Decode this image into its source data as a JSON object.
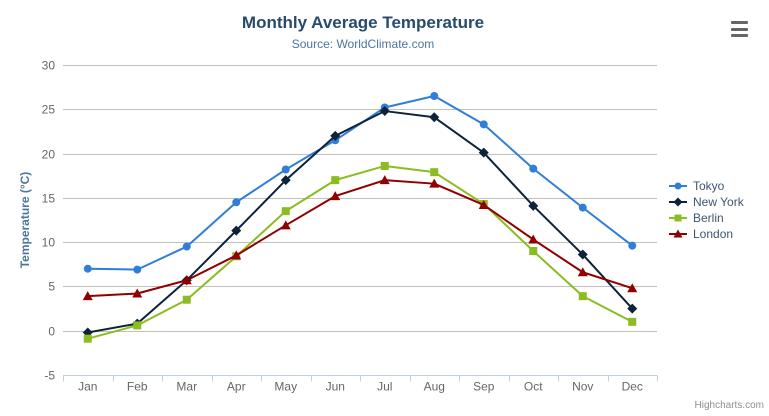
{
  "header": {
    "title": "Monthly Average Temperature",
    "subtitle": "Source: WorldClimate.com"
  },
  "toolbar": {
    "export_menu_icon": "hamburger-menu-icon"
  },
  "credits": {
    "label": "Highcharts.com"
  },
  "colors": {
    "grid_line": "#C0C0C0",
    "axis_line": "#C0D0E0",
    "tick": "#C0D0E0",
    "axis_label": "#666666",
    "title": "#274b6d",
    "subtitle": "#4d759e",
    "yaxis_title": "#4d759e",
    "legend_text": "#3E576F",
    "credits_text": "#909090"
  },
  "chart_data": {
    "type": "line",
    "title": "Monthly Average Temperature",
    "subtitle": "Source: WorldClimate.com",
    "categories": [
      "Jan",
      "Feb",
      "Mar",
      "Apr",
      "May",
      "Jun",
      "Jul",
      "Aug",
      "Sep",
      "Oct",
      "Nov",
      "Dec"
    ],
    "xlabel": "",
    "ylabel": "Temperature (°C)",
    "yaxis": {
      "title": "Temperature (°C)",
      "min": -5,
      "max": 30,
      "tick_interval": 5,
      "ticks": [
        -5,
        0,
        5,
        10,
        15,
        20,
        25,
        30
      ]
    },
    "grid": true,
    "legend_position": "right",
    "series": [
      {
        "name": "Tokyo",
        "color": "#2f7ed8",
        "marker": "circle",
        "values": [
          7.0,
          6.9,
          9.5,
          14.5,
          18.2,
          21.5,
          25.2,
          26.5,
          23.3,
          18.3,
          13.9,
          9.6
        ]
      },
      {
        "name": "New York",
        "color": "#0d233a",
        "marker": "diamond",
        "values": [
          -0.2,
          0.8,
          5.7,
          11.3,
          17.0,
          22.0,
          24.8,
          24.1,
          20.1,
          14.1,
          8.6,
          2.5
        ]
      },
      {
        "name": "Berlin",
        "color": "#8bbc21",
        "marker": "square",
        "values": [
          -0.9,
          0.6,
          3.5,
          8.4,
          13.5,
          17.0,
          18.6,
          17.9,
          14.3,
          9.0,
          3.9,
          1.0
        ]
      },
      {
        "name": "London",
        "color": "#910000",
        "marker": "triangle",
        "values": [
          3.9,
          4.2,
          5.7,
          8.5,
          11.9,
          15.2,
          17.0,
          16.6,
          14.2,
          10.3,
          6.6,
          4.8
        ]
      }
    ]
  }
}
